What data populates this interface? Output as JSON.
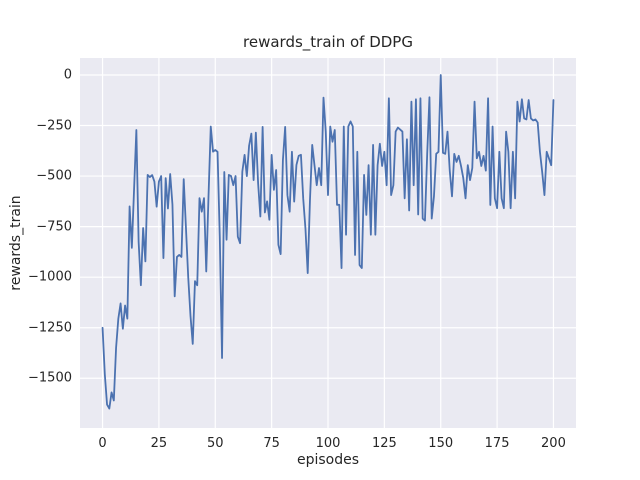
{
  "figure": {
    "title": "rewards_train of DDPG",
    "xlabel": "episodes",
    "ylabel": "rewards_train"
  },
  "chart_data": {
    "type": "line",
    "title": "rewards_train of DDPG",
    "xlabel": "episodes",
    "ylabel": "rewards_train",
    "x_ticks": [
      0,
      25,
      50,
      75,
      100,
      125,
      150,
      175,
      200
    ],
    "y_ticks": [
      0,
      -250,
      -500,
      -750,
      -1000,
      -1250,
      -1500
    ],
    "xlim": [
      -10,
      210
    ],
    "ylim": [
      -1746,
      84
    ],
    "grid": true,
    "legend_position": "none",
    "style": {
      "line_color": "#4c72b0",
      "plot_bg": "#eaeaf2",
      "grid_color": "#ffffff",
      "text_color": "#262626",
      "figure_bg": "#ffffff",
      "line_width": 1.8
    },
    "series": [
      {
        "name": "rewards_train",
        "x_start": 0,
        "x_step": 1,
        "values": [
          -1250,
          -1480,
          -1630,
          -1650,
          -1570,
          -1610,
          -1350,
          -1205,
          -1130,
          -1255,
          -1140,
          -1205,
          -650,
          -855,
          -560,
          -272,
          -825,
          -1040,
          -757,
          -922,
          -494,
          -505,
          -495,
          -527,
          -651,
          -527,
          -500,
          -906,
          -510,
          -660,
          -490,
          -640,
          -1095,
          -900,
          -890,
          -900,
          -515,
          -757,
          -1000,
          -1190,
          -1330,
          -1020,
          -1040,
          -609,
          -676,
          -609,
          -972,
          -600,
          -255,
          -379,
          -371,
          -380,
          -800,
          -1400,
          -480,
          -815,
          -494,
          -500,
          -545,
          -500,
          -800,
          -832,
          -478,
          -395,
          -500,
          -350,
          -290,
          -520,
          -285,
          -535,
          -700,
          -257,
          -680,
          -625,
          -716,
          -395,
          -568,
          -470,
          -840,
          -886,
          -420,
          -257,
          -594,
          -676,
          -380,
          -626,
          -445,
          -400,
          -395,
          -610,
          -760,
          -980,
          -620,
          -346,
          -446,
          -545,
          -460,
          -545,
          -112,
          -280,
          -594,
          -255,
          -330,
          -272,
          -642,
          -642,
          -955,
          -255,
          -790,
          -255,
          -230,
          -255,
          -890,
          -380,
          -940,
          -955,
          -494,
          -692,
          -446,
          -790,
          -346,
          -790,
          -446,
          -340,
          -450,
          -380,
          -545,
          -115,
          -594,
          -545,
          -280,
          -260,
          -270,
          -280,
          -610,
          -318,
          -670,
          -132,
          -545,
          -120,
          -690,
          -115,
          -710,
          -720,
          -390,
          -110,
          -710,
          -600,
          -390,
          -380,
          0,
          -385,
          -390,
          -280,
          -473,
          -600,
          -390,
          -430,
          -400,
          -450,
          -510,
          -610,
          -446,
          -520,
          -460,
          -132,
          -412,
          -380,
          -450,
          -400,
          -473,
          -115,
          -643,
          -255,
          -610,
          -659,
          -380,
          -610,
          -659,
          -280,
          -380,
          -659,
          -380,
          -610,
          -132,
          -230,
          -120,
          -215,
          -220,
          -124,
          -215,
          -225,
          -220,
          -235,
          -380,
          -480,
          -594,
          -380,
          -412,
          -446,
          -124
        ]
      }
    ]
  }
}
